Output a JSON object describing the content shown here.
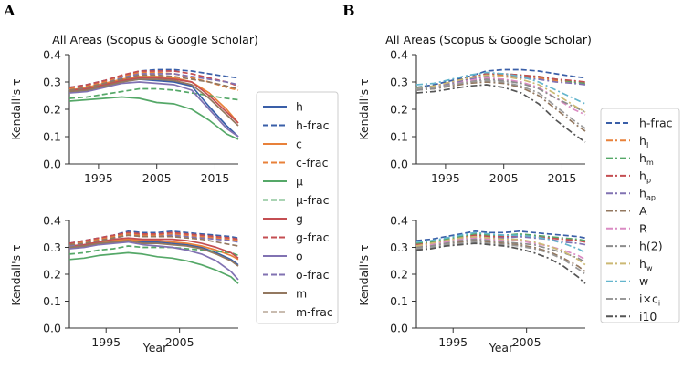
{
  "figure": {
    "panel_labels": [
      "A",
      "B"
    ],
    "title": "All Areas (Scopus & Google Scholar)",
    "ylabel": "Kendall's τ",
    "xlabel": "Year",
    "yticks": [
      "0.0",
      "0.1",
      "0.2",
      "0.3",
      "0.4"
    ],
    "legend_A": [
      {
        "label": "h",
        "color": "#3a5fa8",
        "dash": "solid"
      },
      {
        "label": "h-frac",
        "color": "#3a5fa8",
        "dash": "dashed"
      },
      {
        "label": "c",
        "color": "#e8813a",
        "dash": "solid"
      },
      {
        "label": "c-frac",
        "color": "#e8813a",
        "dash": "dashed"
      },
      {
        "label": "μ",
        "color": "#55a868",
        "dash": "solid"
      },
      {
        "label": "μ-frac",
        "color": "#55a868",
        "dash": "dashed"
      },
      {
        "label": "g",
        "color": "#c44e52",
        "dash": "solid"
      },
      {
        "label": "g-frac",
        "color": "#c44e52",
        "dash": "dashed"
      },
      {
        "label": "o",
        "color": "#8172b2",
        "dash": "solid"
      },
      {
        "label": "o-frac",
        "color": "#8172b2",
        "dash": "dashed"
      },
      {
        "label": "m",
        "color": "#937860",
        "dash": "solid"
      },
      {
        "label": "m-frac",
        "color": "#937860",
        "dash": "dashed"
      }
    ],
    "legend_B": [
      {
        "label": "h-frac",
        "color": "#3a5fa8",
        "dash": "dashed"
      },
      {
        "label": "h",
        "sub": "I",
        "color": "#e8813a",
        "dash": "dashdot"
      },
      {
        "label": "h",
        "sub": "m",
        "color": "#55a868",
        "dash": "dashdot"
      },
      {
        "label": "h",
        "sub": "p",
        "color": "#c44e52",
        "dash": "dashdot"
      },
      {
        "label": "h",
        "sub": "ap",
        "color": "#8172b2",
        "dash": "dashdot"
      },
      {
        "label": "A",
        "color": "#937860",
        "dash": "dashdot"
      },
      {
        "label": "R",
        "color": "#da8bc3",
        "dash": "dashdot"
      },
      {
        "label": "h(2)",
        "color": "#8c8c8c",
        "dash": "dashdot"
      },
      {
        "label": "h",
        "sub": "w",
        "color": "#ccb974",
        "dash": "dashdot"
      },
      {
        "label": "w",
        "color": "#64b5cd",
        "dash": "dashdot"
      },
      {
        "label": "i×c",
        "sub": "i",
        "color": "#999999",
        "dash": "dashdot"
      },
      {
        "label": "i10",
        "color": "#555555",
        "dash": "dashdot"
      }
    ]
  },
  "chart_data": [
    {
      "id": "A-top",
      "type": "line",
      "title": "All Areas (Scopus & Google Scholar)",
      "xlabel": "",
      "ylabel": "Kendall's τ",
      "xlim": [
        1990,
        2019
      ],
      "ylim": [
        0,
        0.4
      ],
      "xticks": [
        1995,
        2005,
        2015
      ],
      "yticks": [
        0.0,
        0.1,
        0.2,
        0.3,
        0.4
      ],
      "x": [
        1990,
        1993,
        1996,
        1999,
        2002,
        2005,
        2008,
        2011,
        2014,
        2017,
        2019
      ],
      "series": [
        {
          "name": "h",
          "values": [
            0.27,
            0.275,
            0.29,
            0.305,
            0.31,
            0.305,
            0.3,
            0.285,
            0.21,
            0.14,
            0.1
          ]
        },
        {
          "name": "h-frac",
          "values": [
            0.28,
            0.29,
            0.305,
            0.32,
            0.34,
            0.345,
            0.345,
            0.34,
            0.33,
            0.32,
            0.315
          ]
        },
        {
          "name": "c",
          "values": [
            0.27,
            0.28,
            0.295,
            0.31,
            0.32,
            0.32,
            0.315,
            0.3,
            0.26,
            0.2,
            0.15
          ]
        },
        {
          "name": "c-frac",
          "values": [
            0.275,
            0.285,
            0.3,
            0.32,
            0.335,
            0.335,
            0.33,
            0.315,
            0.3,
            0.28,
            0.27
          ]
        },
        {
          "name": "μ",
          "values": [
            0.23,
            0.235,
            0.24,
            0.245,
            0.24,
            0.225,
            0.22,
            0.2,
            0.16,
            0.11,
            0.09
          ]
        },
        {
          "name": "μ-frac",
          "values": [
            0.24,
            0.245,
            0.255,
            0.265,
            0.275,
            0.275,
            0.27,
            0.26,
            0.25,
            0.24,
            0.235
          ]
        },
        {
          "name": "g",
          "values": [
            0.27,
            0.275,
            0.29,
            0.305,
            0.315,
            0.315,
            0.31,
            0.3,
            0.25,
            0.19,
            0.15
          ]
        },
        {
          "name": "g-frac",
          "values": [
            0.28,
            0.29,
            0.305,
            0.325,
            0.34,
            0.34,
            0.34,
            0.33,
            0.315,
            0.3,
            0.285
          ]
        },
        {
          "name": "o",
          "values": [
            0.26,
            0.265,
            0.28,
            0.295,
            0.3,
            0.295,
            0.29,
            0.27,
            0.2,
            0.13,
            0.1
          ]
        },
        {
          "name": "o-frac",
          "values": [
            0.27,
            0.28,
            0.295,
            0.315,
            0.33,
            0.33,
            0.33,
            0.32,
            0.31,
            0.3,
            0.29
          ]
        },
        {
          "name": "m",
          "values": [
            0.265,
            0.27,
            0.285,
            0.3,
            0.31,
            0.31,
            0.305,
            0.29,
            0.24,
            0.18,
            0.14
          ]
        },
        {
          "name": "m-frac",
          "values": [
            0.27,
            0.28,
            0.295,
            0.31,
            0.325,
            0.325,
            0.32,
            0.31,
            0.3,
            0.285,
            0.275
          ]
        }
      ]
    },
    {
      "id": "A-bottom",
      "type": "line",
      "title": "",
      "xlabel": "Year",
      "ylabel": "Kendall's τ",
      "xlim": [
        1990,
        2013
      ],
      "ylim": [
        0,
        0.4
      ],
      "xticks": [
        1995,
        2005
      ],
      "yticks": [
        0.0,
        0.1,
        0.2,
        0.3,
        0.4
      ],
      "x": [
        1990,
        1992,
        1994,
        1996,
        1998,
        2000,
        2002,
        2004,
        2006,
        2008,
        2010,
        2012,
        2013
      ],
      "series": [
        {
          "name": "h",
          "values": [
            0.3,
            0.305,
            0.315,
            0.32,
            0.325,
            0.32,
            0.32,
            0.315,
            0.31,
            0.3,
            0.28,
            0.255,
            0.235
          ]
        },
        {
          "name": "h-frac",
          "values": [
            0.315,
            0.325,
            0.335,
            0.345,
            0.36,
            0.355,
            0.355,
            0.36,
            0.355,
            0.35,
            0.345,
            0.34,
            0.335
          ]
        },
        {
          "name": "c",
          "values": [
            0.305,
            0.31,
            0.32,
            0.325,
            0.33,
            0.325,
            0.325,
            0.32,
            0.315,
            0.305,
            0.29,
            0.27,
            0.255
          ]
        },
        {
          "name": "c-frac",
          "values": [
            0.31,
            0.32,
            0.33,
            0.34,
            0.35,
            0.345,
            0.345,
            0.35,
            0.345,
            0.34,
            0.335,
            0.33,
            0.325
          ]
        },
        {
          "name": "μ",
          "values": [
            0.255,
            0.26,
            0.27,
            0.275,
            0.28,
            0.275,
            0.265,
            0.26,
            0.25,
            0.235,
            0.215,
            0.19,
            0.165
          ]
        },
        {
          "name": "μ-frac",
          "values": [
            0.275,
            0.28,
            0.29,
            0.295,
            0.305,
            0.3,
            0.3,
            0.3,
            0.295,
            0.29,
            0.285,
            0.28,
            0.27
          ]
        },
        {
          "name": "g",
          "values": [
            0.305,
            0.31,
            0.32,
            0.33,
            0.335,
            0.33,
            0.33,
            0.33,
            0.325,
            0.315,
            0.3,
            0.28,
            0.26
          ]
        },
        {
          "name": "g-frac",
          "values": [
            0.315,
            0.325,
            0.335,
            0.345,
            0.355,
            0.35,
            0.35,
            0.355,
            0.35,
            0.345,
            0.34,
            0.335,
            0.33
          ]
        },
        {
          "name": "o",
          "values": [
            0.295,
            0.3,
            0.31,
            0.315,
            0.32,
            0.31,
            0.305,
            0.3,
            0.29,
            0.275,
            0.25,
            0.21,
            0.18
          ]
        },
        {
          "name": "o-frac",
          "values": [
            0.305,
            0.315,
            0.325,
            0.335,
            0.345,
            0.34,
            0.34,
            0.345,
            0.34,
            0.335,
            0.33,
            0.325,
            0.32
          ]
        },
        {
          "name": "m",
          "values": [
            0.3,
            0.305,
            0.315,
            0.32,
            0.325,
            0.315,
            0.315,
            0.31,
            0.305,
            0.295,
            0.275,
            0.25,
            0.23
          ]
        },
        {
          "name": "m-frac",
          "values": [
            0.31,
            0.315,
            0.325,
            0.335,
            0.345,
            0.34,
            0.34,
            0.34,
            0.335,
            0.33,
            0.32,
            0.31,
            0.305
          ]
        }
      ]
    },
    {
      "id": "B-top",
      "type": "line",
      "title": "All Areas (Scopus & Google Scholar)",
      "xlabel": "",
      "ylabel": "Kendall's τ",
      "xlim": [
        1990,
        2019
      ],
      "ylim": [
        0,
        0.4
      ],
      "xticks": [
        1995,
        2005,
        2015
      ],
      "yticks": [
        0.0,
        0.1,
        0.2,
        0.3,
        0.4
      ],
      "x": [
        1990,
        1993,
        1996,
        1999,
        2002,
        2005,
        2008,
        2011,
        2014,
        2017,
        2019
      ],
      "series": [
        {
          "name": "h-frac",
          "values": [
            0.28,
            0.29,
            0.305,
            0.32,
            0.34,
            0.345,
            0.345,
            0.34,
            0.33,
            0.32,
            0.315
          ]
        },
        {
          "name": "hI",
          "values": [
            0.275,
            0.28,
            0.295,
            0.31,
            0.325,
            0.325,
            0.32,
            0.315,
            0.305,
            0.3,
            0.295
          ]
        },
        {
          "name": "hm",
          "values": [
            0.28,
            0.285,
            0.3,
            0.315,
            0.33,
            0.33,
            0.325,
            0.32,
            0.31,
            0.3,
            0.295
          ]
        },
        {
          "name": "hp",
          "values": [
            0.275,
            0.285,
            0.3,
            0.315,
            0.33,
            0.33,
            0.325,
            0.32,
            0.31,
            0.305,
            0.3
          ]
        },
        {
          "name": "hap",
          "values": [
            0.27,
            0.28,
            0.295,
            0.31,
            0.32,
            0.32,
            0.315,
            0.31,
            0.3,
            0.295,
            0.29
          ]
        },
        {
          "name": "A",
          "values": [
            0.27,
            0.275,
            0.285,
            0.295,
            0.3,
            0.295,
            0.28,
            0.25,
            0.2,
            0.15,
            0.12
          ]
        },
        {
          "name": "R",
          "values": [
            0.275,
            0.28,
            0.29,
            0.305,
            0.315,
            0.31,
            0.3,
            0.28,
            0.24,
            0.2,
            0.18
          ]
        },
        {
          "name": "h(2)",
          "values": [
            0.27,
            0.275,
            0.29,
            0.3,
            0.31,
            0.305,
            0.295,
            0.275,
            0.24,
            0.21,
            0.19
          ]
        },
        {
          "name": "hw",
          "values": [
            0.275,
            0.285,
            0.3,
            0.315,
            0.325,
            0.32,
            0.31,
            0.29,
            0.255,
            0.215,
            0.19
          ]
        },
        {
          "name": "w",
          "values": [
            0.29,
            0.295,
            0.31,
            0.325,
            0.335,
            0.33,
            0.32,
            0.3,
            0.27,
            0.24,
            0.22
          ]
        },
        {
          "name": "i×ci",
          "values": [
            0.275,
            0.28,
            0.29,
            0.3,
            0.305,
            0.3,
            0.285,
            0.26,
            0.21,
            0.16,
            0.13
          ]
        },
        {
          "name": "i10",
          "values": [
            0.26,
            0.265,
            0.275,
            0.285,
            0.29,
            0.28,
            0.26,
            0.22,
            0.16,
            0.11,
            0.08
          ]
        }
      ]
    },
    {
      "id": "B-bottom",
      "type": "line",
      "title": "",
      "xlabel": "Year",
      "ylabel": "Kendall's τ",
      "xlim": [
        1990,
        2013
      ],
      "ylim": [
        0,
        0.4
      ],
      "xticks": [
        1995,
        2005
      ],
      "yticks": [
        0.0,
        0.1,
        0.2,
        0.3,
        0.4
      ],
      "x": [
        1990,
        1992,
        1994,
        1996,
        1998,
        2000,
        2002,
        2004,
        2006,
        2008,
        2010,
        2012,
        2013
      ],
      "series": [
        {
          "name": "h-frac",
          "values": [
            0.325,
            0.33,
            0.34,
            0.35,
            0.36,
            0.355,
            0.355,
            0.36,
            0.355,
            0.35,
            0.345,
            0.34,
            0.335
          ]
        },
        {
          "name": "hI",
          "values": [
            0.31,
            0.315,
            0.325,
            0.335,
            0.345,
            0.34,
            0.34,
            0.345,
            0.34,
            0.335,
            0.33,
            0.325,
            0.32
          ]
        },
        {
          "name": "hm",
          "values": [
            0.315,
            0.32,
            0.33,
            0.34,
            0.35,
            0.345,
            0.345,
            0.35,
            0.345,
            0.34,
            0.335,
            0.33,
            0.325
          ]
        },
        {
          "name": "hp",
          "values": [
            0.31,
            0.315,
            0.325,
            0.335,
            0.345,
            0.34,
            0.34,
            0.345,
            0.34,
            0.335,
            0.33,
            0.325,
            0.32
          ]
        },
        {
          "name": "hap",
          "values": [
            0.305,
            0.31,
            0.32,
            0.33,
            0.34,
            0.335,
            0.335,
            0.34,
            0.335,
            0.33,
            0.32,
            0.315,
            0.31
          ]
        },
        {
          "name": "A",
          "values": [
            0.3,
            0.305,
            0.315,
            0.32,
            0.325,
            0.32,
            0.315,
            0.31,
            0.3,
            0.285,
            0.26,
            0.23,
            0.21
          ]
        },
        {
          "name": "R",
          "values": [
            0.305,
            0.31,
            0.32,
            0.33,
            0.335,
            0.33,
            0.325,
            0.325,
            0.315,
            0.305,
            0.29,
            0.27,
            0.255
          ]
        },
        {
          "name": "h(2)",
          "values": [
            0.3,
            0.305,
            0.315,
            0.325,
            0.33,
            0.325,
            0.32,
            0.315,
            0.31,
            0.295,
            0.28,
            0.26,
            0.245
          ]
        },
        {
          "name": "hw",
          "values": [
            0.305,
            0.315,
            0.325,
            0.335,
            0.34,
            0.335,
            0.33,
            0.33,
            0.32,
            0.305,
            0.285,
            0.255,
            0.235
          ]
        },
        {
          "name": "w",
          "values": [
            0.32,
            0.325,
            0.335,
            0.345,
            0.355,
            0.35,
            0.345,
            0.345,
            0.34,
            0.33,
            0.315,
            0.295,
            0.28
          ]
        },
        {
          "name": "i×ci",
          "values": [
            0.295,
            0.3,
            0.31,
            0.315,
            0.32,
            0.315,
            0.31,
            0.305,
            0.295,
            0.28,
            0.255,
            0.22,
            0.2
          ]
        },
        {
          "name": "i10",
          "values": [
            0.29,
            0.295,
            0.305,
            0.31,
            0.315,
            0.31,
            0.305,
            0.295,
            0.28,
            0.26,
            0.23,
            0.19,
            0.165
          ]
        }
      ]
    }
  ]
}
